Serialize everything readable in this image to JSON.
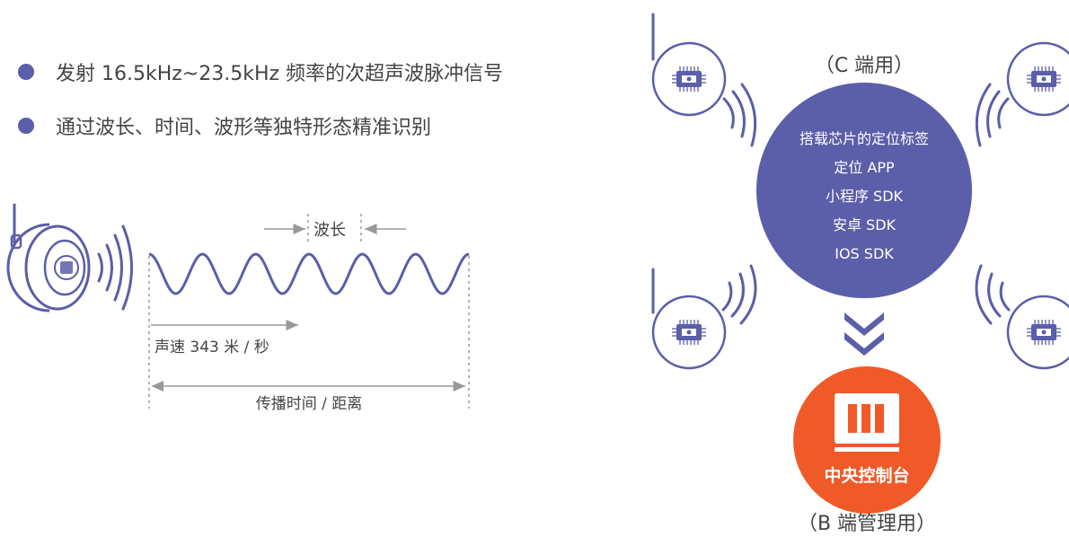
{
  "bullets": [
    {
      "text": "发射 16.5kHz~23.5kHz 频率的次超声波脉冲信号"
    },
    {
      "text": "通过波长、时间、波形等独特形态精准识别"
    }
  ],
  "wave_diagram": {
    "wavelength_label": "波长",
    "speed_label": "声速 343 米 / 秒",
    "time_distance_label": "传播时间 / 距离"
  },
  "architecture": {
    "c_side_label": "（C 端用）",
    "circle_items": [
      "搭载芯片的定位标签",
      "定位 APP",
      "小程序 SDK",
      "安卓 SDK",
      "IOS SDK"
    ],
    "console_label": "中央控制台",
    "b_side_label": "（B 端管理用）"
  },
  "colors": {
    "purple": "#5b5ea8",
    "orange": "#f05a28",
    "gray": "#999999"
  },
  "icons": [
    "speaker-device-icon",
    "sound-wave-icon",
    "chip-tag-icon",
    "double-chevron-down-icon",
    "monitor-icon"
  ]
}
